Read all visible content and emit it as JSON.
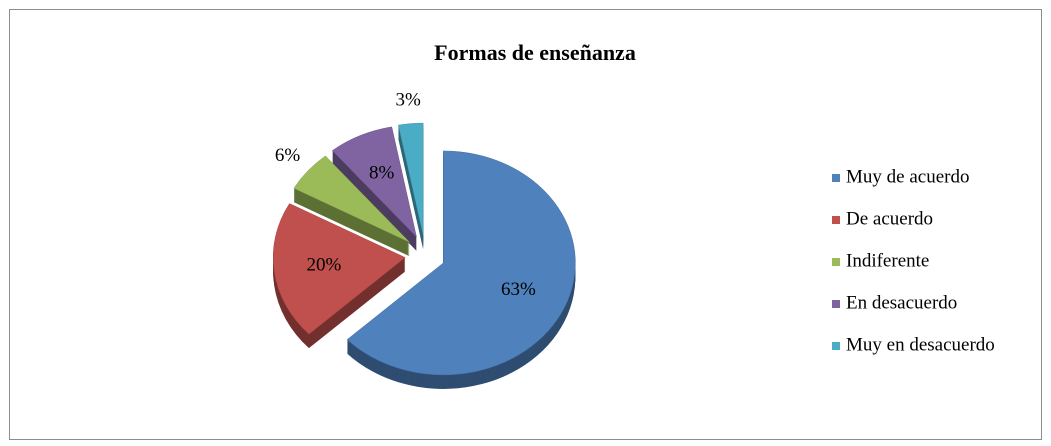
{
  "chart_data": {
    "type": "pie",
    "title": "Formas de enseñanza",
    "categories": [
      "Muy de acuerdo",
      "De acuerdo",
      "Indiferente",
      "En desacuerdo",
      "Muy en desacuerdo"
    ],
    "values": [
      63,
      20,
      6,
      8,
      3
    ],
    "value_labels": [
      "63%",
      "20%",
      "6%",
      "8%",
      "3%"
    ],
    "colors": [
      "#4f81bd",
      "#c0504d",
      "#9bbb59",
      "#8064a2",
      "#4bacc6"
    ],
    "legend": "right"
  }
}
